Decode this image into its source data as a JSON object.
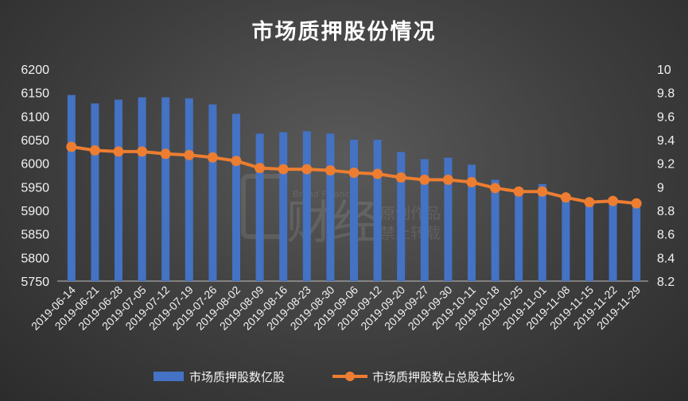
{
  "chart_data": {
    "type": "bar",
    "title": "市场质押股份情况",
    "categories": [
      "2019-06-14",
      "2019-06-21",
      "2019-06-28",
      "2019-07-05",
      "2019-07-12",
      "2019-07-19",
      "2019-07-26",
      "2019-08-02",
      "2019-08-09",
      "2019-08-16",
      "2019-08-23",
      "2019-08-30",
      "2019-09-06",
      "2019-09-12",
      "2019-09-20",
      "2019-09-27",
      "2019-09-30",
      "2019-10-11",
      "2019-10-18",
      "2019-10-25",
      "2019-11-01",
      "2019-11-08",
      "2019-11-15",
      "2019-11-22",
      "2019-11-29"
    ],
    "series": [
      {
        "name": "市场质押股数亿股",
        "type": "bar",
        "axis": "left",
        "color": "#4472c4",
        "values": [
          6145,
          6127,
          6135,
          6140,
          6140,
          6138,
          6125,
          6105,
          6063,
          6066,
          6068,
          6063,
          6050,
          6050,
          6024,
          6009,
          6012,
          5997,
          5965,
          5948,
          5956,
          5920,
          5912,
          5925,
          5908
        ]
      },
      {
        "name": "市场质押股数占总股本比%",
        "type": "line",
        "axis": "right",
        "color": "#ed7d31",
        "values": [
          9.34,
          9.31,
          9.3,
          9.3,
          9.28,
          9.27,
          9.25,
          9.22,
          9.16,
          9.15,
          9.15,
          9.14,
          9.12,
          9.11,
          9.08,
          9.06,
          9.06,
          9.04,
          8.99,
          8.96,
          8.96,
          8.91,
          8.87,
          8.88,
          8.86
        ]
      }
    ],
    "yleft": {
      "min": 5750,
      "max": 6200,
      "step": 50
    },
    "yright": {
      "min": 8.2,
      "max": 10,
      "step": 0.2
    },
    "legend_position": "bottom",
    "grid": false
  },
  "legend": {
    "bar_label": "市场质押股数亿股",
    "line_label": "市场质押股数占总股本比%"
  },
  "watermark": {
    "brand": "财经",
    "sub": "原创作品",
    "sub2": "禁止转载",
    "en": "Brand Finance"
  }
}
